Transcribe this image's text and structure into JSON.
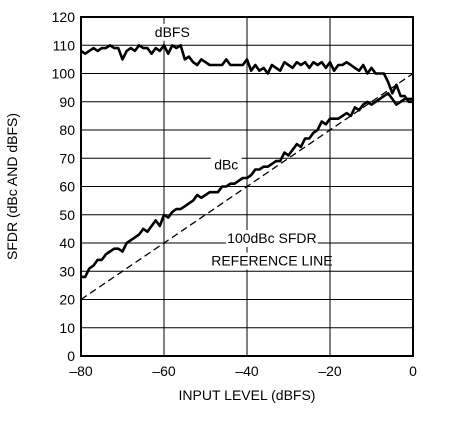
{
  "chart_data": {
    "type": "line",
    "xlabel": "INPUT LEVEL (dBFS)",
    "ylabel": "SFDR (dBc AND dBFS)",
    "xlim": [
      -80,
      0
    ],
    "ylim": [
      0,
      120
    ],
    "xticks": [
      -80,
      -60,
      -40,
      -20,
      0
    ],
    "xtick_labels": [
      "–80",
      "–60",
      "–40",
      "–20",
      "0"
    ],
    "yticks": [
      0,
      10,
      20,
      30,
      40,
      50,
      60,
      70,
      80,
      90,
      100,
      110,
      120
    ],
    "ytick_labels": [
      "0",
      "10",
      "20",
      "30",
      "40",
      "50",
      "60",
      "70",
      "80",
      "90",
      "100",
      "110",
      "120"
    ],
    "grid": true,
    "annotations": [
      {
        "text": "dBFS",
        "x": -58,
        "y": 113
      },
      {
        "text": "dBc",
        "x": -45,
        "y": 66
      },
      {
        "text": "100dBc SFDR",
        "x": -34,
        "y": 40
      },
      {
        "text": "REFERENCE LINE",
        "x": -34,
        "y": 32
      }
    ],
    "series": [
      {
        "name": "dBFS",
        "style": "solid",
        "x": [
          -80,
          -79,
          -78,
          -77,
          -76,
          -75,
          -74,
          -73,
          -72,
          -71,
          -70,
          -69,
          -68,
          -67,
          -66,
          -65,
          -64,
          -63,
          -62,
          -61,
          -60,
          -59,
          -58,
          -57,
          -56,
          -55,
          -54,
          -53,
          -52,
          -51,
          -50,
          -49,
          -48,
          -47,
          -46,
          -45,
          -44,
          -43,
          -42,
          -41,
          -40,
          -39,
          -38,
          -37,
          -36,
          -35,
          -34,
          -33,
          -32,
          -31,
          -30,
          -29,
          -28,
          -27,
          -26,
          -25,
          -24,
          -23,
          -22,
          -21,
          -20,
          -19,
          -18,
          -17,
          -16,
          -15,
          -14,
          -13,
          -12,
          -11,
          -10,
          -9,
          -8,
          -7,
          -6,
          -5,
          -4,
          -3,
          -2,
          -1,
          0
        ],
        "y": [
          108,
          107,
          108,
          109,
          108,
          109,
          109,
          110,
          109,
          109,
          105,
          108,
          109,
          108,
          110,
          109,
          109,
          107,
          109,
          108,
          110,
          107,
          110,
          109,
          110,
          105,
          106,
          104,
          103,
          105,
          104,
          103,
          103,
          103,
          103,
          105,
          103,
          103,
          103,
          103,
          105,
          101,
          103,
          101,
          102,
          100,
          103,
          102,
          101,
          104,
          103,
          102,
          104,
          103,
          104,
          102,
          104,
          103,
          104,
          102,
          104,
          101,
          103,
          103,
          104,
          103,
          102,
          101,
          103,
          100,
          102,
          100,
          100,
          100,
          97,
          93,
          96,
          92,
          92,
          90,
          90
        ]
      },
      {
        "name": "dBc",
        "style": "solid",
        "x": [
          -80,
          -79,
          -78,
          -77,
          -76,
          -75,
          -74,
          -73,
          -72,
          -71,
          -70,
          -69,
          -68,
          -67,
          -66,
          -65,
          -64,
          -63,
          -62,
          -61,
          -60,
          -59,
          -58,
          -57,
          -56,
          -55,
          -54,
          -53,
          -52,
          -51,
          -50,
          -49,
          -48,
          -47,
          -46,
          -45,
          -44,
          -43,
          -42,
          -41,
          -40,
          -39,
          -38,
          -37,
          -36,
          -35,
          -34,
          -33,
          -32,
          -31,
          -30,
          -29,
          -28,
          -27,
          -26,
          -25,
          -24,
          -23,
          -22,
          -21,
          -20,
          -19,
          -18,
          -17,
          -16,
          -15,
          -14,
          -13,
          -12,
          -11,
          -10,
          -9,
          -8,
          -7,
          -6,
          -5,
          -4,
          -3,
          -2,
          -1,
          0
        ],
        "y": [
          28,
          28,
          31,
          32,
          34,
          34,
          36,
          37,
          38,
          38,
          37,
          40,
          41,
          42,
          43,
          45,
          44,
          46,
          48,
          46,
          50,
          49,
          51,
          52,
          52,
          53,
          54,
          55,
          57,
          56,
          57,
          58,
          58,
          58,
          60,
          60,
          61,
          61,
          62,
          63,
          63,
          64,
          66,
          66,
          67,
          67,
          68,
          69,
          69,
          72,
          71,
          73,
          75,
          74,
          77,
          77,
          79,
          80,
          83,
          82,
          84,
          84,
          84,
          85,
          86,
          85,
          88,
          87,
          89,
          90,
          89,
          90,
          91,
          92,
          93,
          91,
          89,
          90,
          91,
          91,
          91
        ]
      },
      {
        "name": "",
        "style": "dashed",
        "x": [
          -80,
          0
        ],
        "y": [
          20,
          100
        ]
      }
    ]
  }
}
